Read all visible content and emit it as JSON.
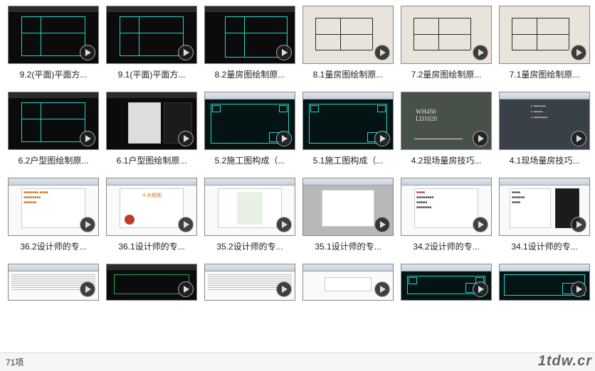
{
  "status": {
    "count_label": "71项"
  },
  "watermark": "1tdw.cr",
  "items": [
    {
      "label": "9.2(平面)平面方...",
      "style": "cad-plan"
    },
    {
      "label": "9.1(平面)平面方...",
      "style": "cad-plan"
    },
    {
      "label": "8.2量房图绘制原...",
      "style": "cad-plan2"
    },
    {
      "label": "8.1量房图绘制原...",
      "style": "paper-sketch"
    },
    {
      "label": "7.2量房图绘制原...",
      "style": "paper-sketch"
    },
    {
      "label": "7.1量房图绘制原...",
      "style": "paper-sketch"
    },
    {
      "label": "6.2户型图绘制原...",
      "style": "cad-plan"
    },
    {
      "label": "6.1户型图绘制原...",
      "style": "doc-half"
    },
    {
      "label": "5.2施工图构成（...",
      "style": "teal-frame"
    },
    {
      "label": "5.1施工图构成（...",
      "style": "teal-frame"
    },
    {
      "label": "4.2现场量房技巧...",
      "style": "chalk"
    },
    {
      "label": "4.1现场量房技巧...",
      "style": "slide-dark"
    },
    {
      "label": "36.2设计师的专...",
      "style": "doc-orange"
    },
    {
      "label": "36.1设计师的专...",
      "style": "doc-orange2"
    },
    {
      "label": "35.2设计师的专...",
      "style": "doc-green"
    },
    {
      "label": "35.1设计师的专...",
      "style": "doc-whitebox"
    },
    {
      "label": "34.2设计师的专...",
      "style": "doc-red"
    },
    {
      "label": "34.1设计师的专...",
      "style": "doc-split"
    },
    {
      "label": "",
      "style": "table"
    },
    {
      "label": "",
      "style": "cad-dark"
    },
    {
      "label": "",
      "style": "table"
    },
    {
      "label": "",
      "style": "doc-small"
    },
    {
      "label": "",
      "style": "teal-frame"
    },
    {
      "label": "",
      "style": "teal-frame2"
    }
  ]
}
